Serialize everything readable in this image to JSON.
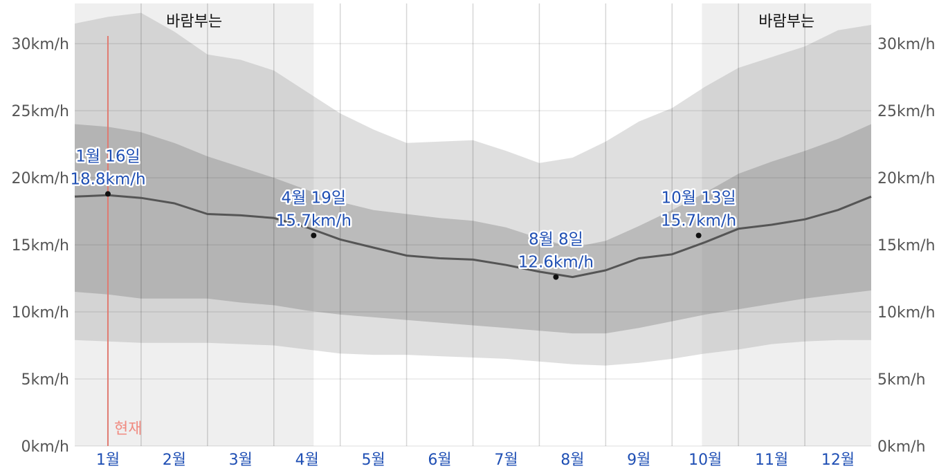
{
  "chart_data": {
    "type": "area",
    "y_unit": "km/h",
    "ylim": [
      0,
      33
    ],
    "y_ticks": [
      "0km/h",
      "5km/h",
      "10km/h",
      "15km/h",
      "20km/h",
      "25km/h",
      "30km/h"
    ],
    "y_tick_values": [
      0,
      5,
      10,
      15,
      20,
      25,
      30
    ],
    "month_labels": [
      "1월",
      "2월",
      "3월",
      "4월",
      "5월",
      "6월",
      "7월",
      "8월",
      "9월",
      "10월",
      "11월",
      "12월"
    ],
    "grid": true,
    "season_label": "바람부는",
    "windy_periods": [
      [
        0,
        3.6
      ],
      [
        9.45,
        12
      ]
    ],
    "now_label": "현재",
    "now_month": 0.5,
    "x_month": [
      0,
      0.5,
      1,
      1.5,
      2,
      2.5,
      3,
      3.5,
      4,
      4.5,
      5,
      5.5,
      6,
      6.5,
      7,
      7.5,
      8,
      8.5,
      9,
      9.5,
      10,
      10.5,
      11,
      11.5,
      12
    ],
    "series": [
      {
        "role": "p10",
        "values": [
          7.9,
          7.8,
          7.7,
          7.7,
          7.7,
          7.6,
          7.5,
          7.2,
          6.9,
          6.8,
          6.8,
          6.7,
          6.6,
          6.5,
          6.3,
          6.1,
          6.0,
          6.2,
          6.5,
          6.9,
          7.2,
          7.6,
          7.8,
          7.9,
          7.9
        ]
      },
      {
        "role": "p25",
        "values": [
          11.5,
          11.3,
          11.0,
          11.0,
          11.0,
          10.7,
          10.5,
          10.1,
          9.8,
          9.6,
          9.4,
          9.2,
          9.0,
          8.8,
          8.6,
          8.4,
          8.4,
          8.8,
          9.3,
          9.8,
          10.2,
          10.6,
          11.0,
          11.3,
          11.6
        ]
      },
      {
        "role": "mean",
        "values": [
          18.6,
          18.7,
          18.5,
          18.1,
          17.3,
          17.2,
          17.0,
          16.3,
          15.4,
          14.8,
          14.2,
          14.0,
          13.9,
          13.5,
          13.0,
          12.6,
          13.1,
          14.0,
          14.3,
          15.2,
          16.2,
          16.5,
          16.9,
          17.6,
          18.6
        ]
      },
      {
        "role": "p75",
        "values": [
          24.0,
          23.8,
          23.4,
          22.6,
          21.6,
          20.8,
          20.0,
          19.1,
          18.2,
          17.6,
          17.3,
          17.0,
          16.8,
          16.3,
          15.5,
          14.8,
          15.3,
          16.4,
          17.6,
          18.9,
          20.3,
          21.2,
          22.0,
          22.9,
          24.0
        ]
      },
      {
        "role": "p90",
        "values": [
          31.5,
          32.0,
          32.3,
          30.9,
          29.2,
          28.8,
          28.0,
          26.4,
          24.8,
          23.6,
          22.6,
          22.7,
          22.8,
          22.0,
          21.1,
          21.5,
          22.7,
          24.2,
          25.2,
          26.8,
          28.2,
          29.0,
          29.8,
          31.0,
          31.4
        ]
      }
    ],
    "annotations": [
      {
        "x_month": 0.5,
        "value": 18.8,
        "date": "1월 16일",
        "text": "18.8km/h"
      },
      {
        "x_month": 3.6,
        "value": 15.7,
        "date": "4월 19일",
        "text": "15.7km/h"
      },
      {
        "x_month": 7.25,
        "value": 12.6,
        "date": "8월 8일",
        "text": "12.6km/h"
      },
      {
        "x_month": 9.4,
        "value": 15.7,
        "date": "10월 13일",
        "text": "15.7km/h"
      }
    ]
  }
}
